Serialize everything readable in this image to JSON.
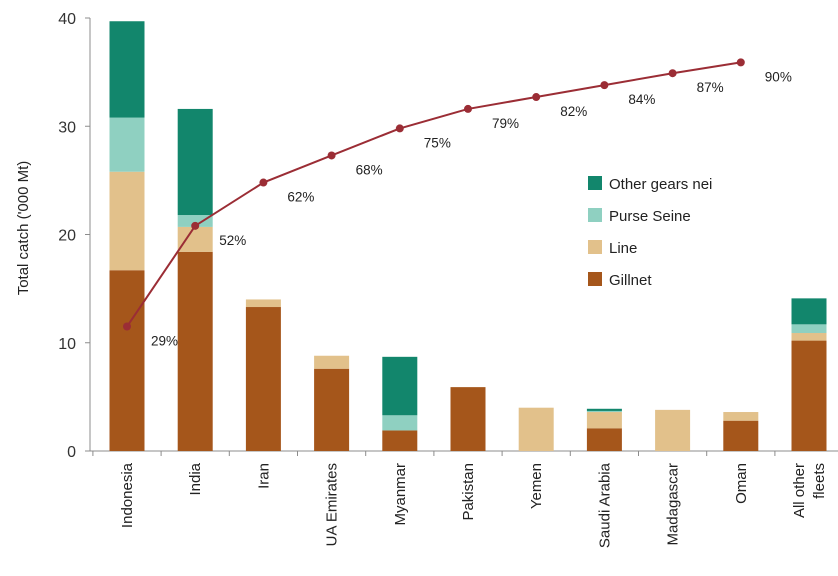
{
  "chart_data": {
    "type": "bar",
    "stacked": true,
    "title": "",
    "xlabel": "",
    "ylabel": "Total catch ('000 Mt)",
    "ylim": [
      0,
      40
    ],
    "yticks": [
      "0",
      "10",
      "20",
      "30",
      "40"
    ],
    "grid": false,
    "legend_position": "right",
    "categories": [
      [
        "Indonesia"
      ],
      [
        "India"
      ],
      [
        "Iran"
      ],
      [
        "UA Emirates"
      ],
      [
        "Myanmar"
      ],
      [
        "Pakistan"
      ],
      [
        "Yemen"
      ],
      [
        "Saudi Arabia"
      ],
      [
        "Madagascar"
      ],
      [
        "Oman"
      ],
      [
        "All other",
        "fleets"
      ]
    ],
    "series": [
      {
        "name": "Gillnet",
        "color": "#A5561B",
        "values": [
          16.7,
          18.4,
          13.3,
          7.6,
          1.9,
          5.9,
          0,
          2.1,
          0,
          2.8,
          10.2
        ]
      },
      {
        "name": "Line",
        "color": "#E2C18B",
        "values": [
          9.1,
          2.3,
          0.7,
          1.2,
          0,
          0,
          4.0,
          1.5,
          3.8,
          0.8,
          0.7
        ]
      },
      {
        "name": "Purse Seine",
        "color": "#8FD0C1",
        "values": [
          5.0,
          1.1,
          0,
          0,
          1.4,
          0,
          0,
          0.1,
          0,
          0,
          0.8
        ]
      },
      {
        "name": "Other gears nei",
        "color": "#12866C",
        "values": [
          8.9,
          9.8,
          0,
          0,
          5.4,
          0,
          0,
          0.2,
          0,
          0,
          2.4
        ]
      }
    ],
    "legend_order": [
      "Other gears nei",
      "Purse Seine",
      "Line",
      "Gillnet"
    ],
    "cumulative_line": {
      "color": "#9B2D35",
      "values": [
        11.5,
        20.8,
        24.8,
        27.3,
        29.8,
        31.6,
        32.7,
        33.8,
        34.9,
        35.9
      ],
      "labels": [
        "29%",
        "52%",
        "62%",
        "68%",
        "75%",
        "79%",
        "82%",
        "84%",
        "87%",
        "90%"
      ]
    }
  }
}
